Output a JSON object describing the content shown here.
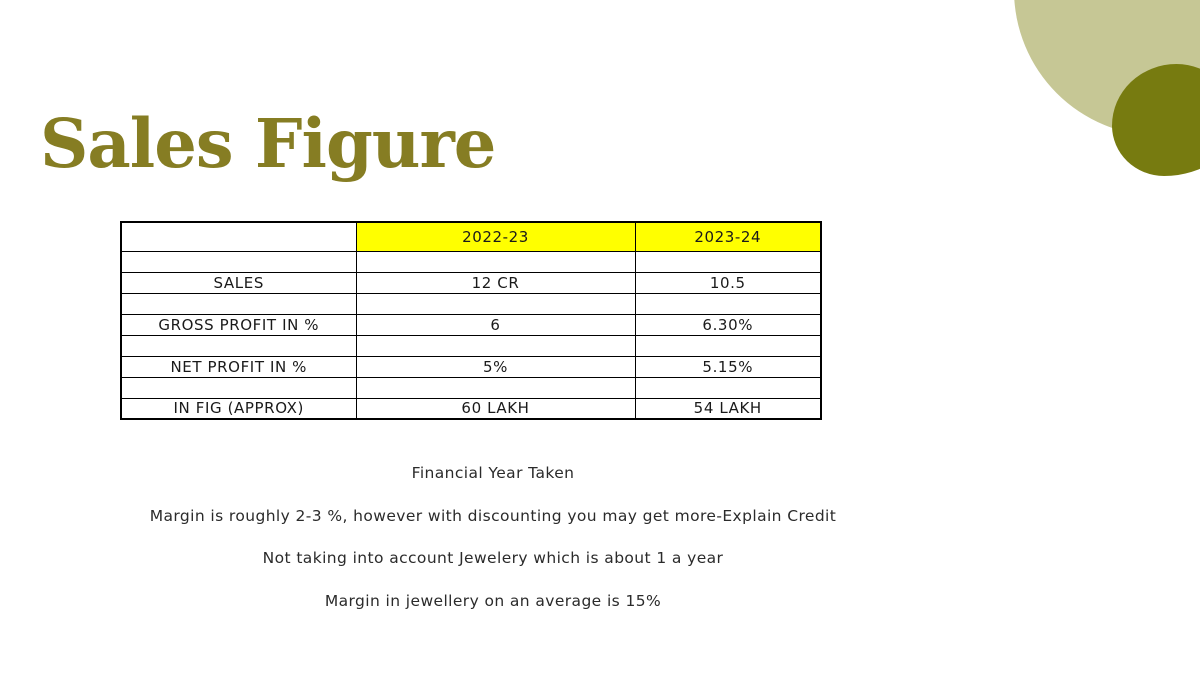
{
  "slide": {
    "title": "Sales Figure",
    "colors": {
      "title_olive": "#867D23",
      "sage_circle": "#C6C795",
      "olive_blob": "#777B10",
      "header_highlight": "#FFFF00",
      "table_border": "#000000"
    },
    "table": {
      "header": [
        "",
        "2022-23",
        "2023-24"
      ],
      "rows": [
        [
          "",
          "",
          ""
        ],
        [
          "SALES",
          "12 CR",
          "10.5"
        ],
        [
          "",
          "",
          ""
        ],
        [
          "GROSS PROFIT IN %",
          "6",
          "6.30%"
        ],
        [
          "",
          "",
          ""
        ],
        [
          "NET PROFIT IN %",
          "5%",
          "5.15%"
        ],
        [
          "",
          "",
          ""
        ],
        [
          "IN FIG (APPROX)",
          "60 LAKH",
          "54 LAKH"
        ]
      ]
    },
    "notes": [
      "Financial Year Taken",
      "Margin is roughly 2-3 %, however with discounting you may get more-Explain Credit",
      "Not taking into account Jewelery which is about 1 a year",
      "Margin in jewellery on an average is 15%"
    ]
  }
}
